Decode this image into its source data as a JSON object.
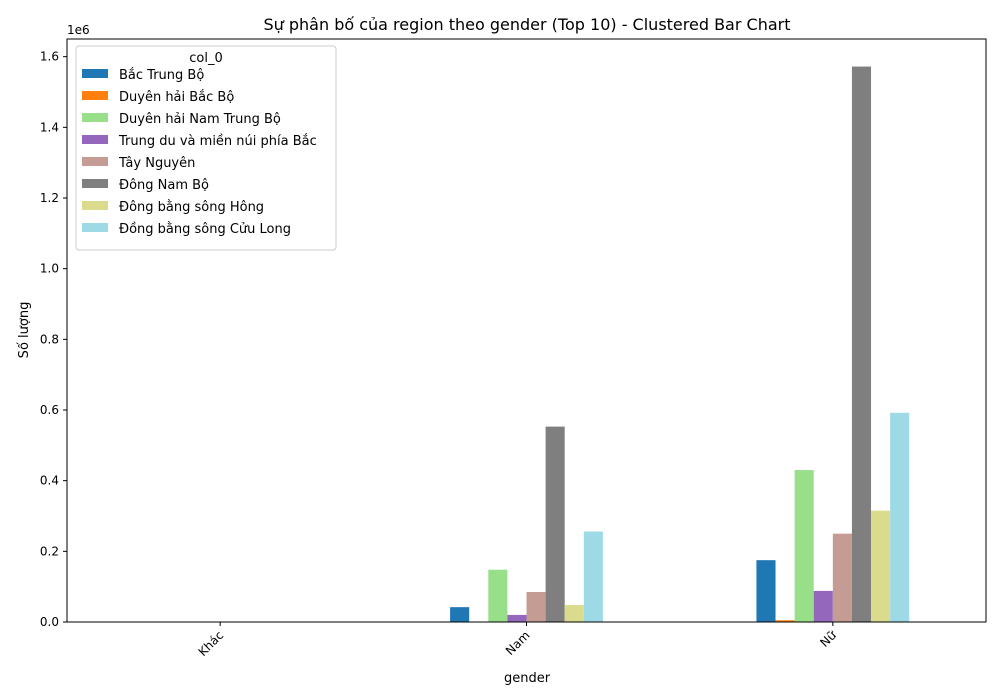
{
  "chart_data": {
    "type": "bar",
    "title": "Sự phân bố của region theo gender (Top 10) - Clustered Bar Chart",
    "xlabel": "gender",
    "ylabel": "Số lượng",
    "y_scale_label": "1e6",
    "ylim": [
      0,
      1.65
    ],
    "yticks": [
      0.0,
      0.2,
      0.4,
      0.6,
      0.8,
      1.0,
      1.2,
      1.4,
      1.6
    ],
    "ytick_labels": [
      "0.0",
      "0.2",
      "0.4",
      "0.6",
      "0.8",
      "1.0",
      "1.2",
      "1.4",
      "1.6"
    ],
    "grid": false,
    "categories": [
      "Khác",
      "Nam",
      "Nữ"
    ],
    "legend": {
      "title": "col_0",
      "placement": "top-left"
    },
    "series": [
      {
        "name": "Bắc Trung Bộ",
        "color": "#1f77b4",
        "values": [
          0.0,
          0.042,
          0.175
        ]
      },
      {
        "name": "Duyên hải Bắc Bộ",
        "color": "#ff7f0e",
        "values": [
          0.0,
          0.0,
          0.005
        ]
      },
      {
        "name": "Duyên hải Nam Trung Bộ",
        "color": "#98df8a",
        "values": [
          0.0,
          0.148,
          0.43
        ]
      },
      {
        "name": "Trung du và miền núi phía Bắc",
        "color": "#9467bd",
        "values": [
          0.0,
          0.02,
          0.088
        ]
      },
      {
        "name": "Tây Nguyên",
        "color": "#c49c94",
        "values": [
          0.0,
          0.085,
          0.25
        ]
      },
      {
        "name": "Đông Nam Bộ",
        "color": "#7f7f7f",
        "values": [
          0.0,
          0.553,
          1.572
        ]
      },
      {
        "name": "Đông bằng sông Hông",
        "color": "#dbdb8d",
        "values": [
          0.0,
          0.048,
          0.315
        ]
      },
      {
        "name": "Đồng bằng sông Cửu Long",
        "color": "#9edae5",
        "values": [
          0.0,
          0.256,
          0.592
        ]
      }
    ]
  }
}
